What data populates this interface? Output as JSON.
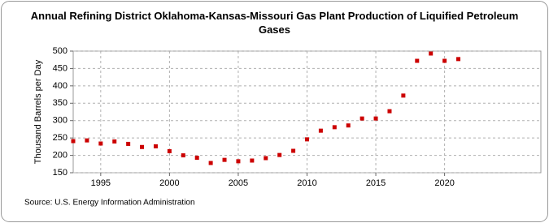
{
  "chart_data": {
    "type": "scatter",
    "title": "Annual Refining District Oklahoma-Kansas-Missouri Gas Plant Production of Liquified Petroleum Gases",
    "y_label": "Thousand Barrels per Day",
    "source": "Source: U.S. Energy Information Administration",
    "x": [
      1993,
      1994,
      1995,
      1996,
      1997,
      1998,
      1999,
      2000,
      2001,
      2002,
      2003,
      2004,
      2005,
      2006,
      2007,
      2008,
      2009,
      2010,
      2011,
      2012,
      2013,
      2014,
      2015,
      2016,
      2017,
      2018,
      2019,
      2020,
      2021
    ],
    "series": [
      {
        "name": "Production",
        "color": "#cc0000",
        "values": [
          241,
          243,
          234,
          240,
          233,
          224,
          226,
          212,
          200,
          193,
          178,
          187,
          183,
          185,
          192,
          201,
          213,
          246,
          271,
          281,
          286,
          306,
          306,
          327,
          372,
          472,
          493,
          472,
          477
        ]
      }
    ],
    "xlim": [
      1993,
      2027
    ],
    "xticks": [
      1995,
      2000,
      2005,
      2010,
      2015,
      2020
    ],
    "ylim": [
      150,
      500
    ],
    "yticks": [
      150,
      200,
      250,
      300,
      350,
      400,
      450,
      500
    ],
    "grid": true
  }
}
